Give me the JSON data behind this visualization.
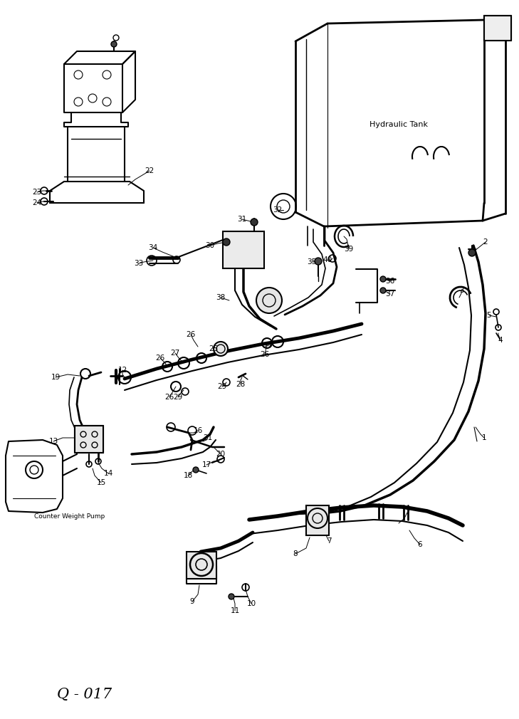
{
  "bg_color": "#ffffff",
  "line_color": "#000000",
  "fig_width": 7.29,
  "fig_height": 10.1,
  "dpi": 100,
  "bottom_text": "Q - 017",
  "hydraulic_tank_label": "Hydraulic Tank",
  "pump_label": "Counter Weight Pump"
}
